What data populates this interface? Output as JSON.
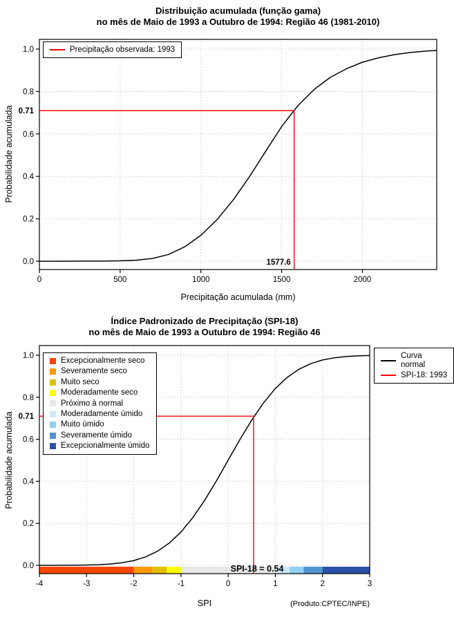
{
  "chart_data": [
    {
      "type": "line",
      "title": "Distribuição acumulada (função gama)",
      "subtitle": "no mês de Maio de 1993 a Outubro de 1994: Região 46 (1981-2010)",
      "xlabel": "Precipitação acumulada (mm)",
      "ylabel": "Probabilidade acumulada",
      "xlim": [
        0,
        2460
      ],
      "ylim": [
        0,
        1
      ],
      "xticks": [
        0,
        500,
        1000,
        1500,
        2000
      ],
      "xticklabels": [
        "0",
        "500",
        "1000",
        "1500",
        "2000"
      ],
      "yticks": [
        0,
        0.2,
        0.4,
        0.6,
        0.8,
        1
      ],
      "yticklabels": [
        "0.0",
        "0.2",
        "0.4",
        "0.6",
        "0.8",
        "1.0"
      ],
      "grid": true,
      "curve": {
        "name": "CDF gama (1981-2010)",
        "color": "#000000",
        "x": [
          0,
          100,
          200,
          300,
          400,
          500,
          600,
          700,
          800,
          900,
          1000,
          1100,
          1200,
          1300,
          1400,
          1500,
          1600,
          1700,
          1800,
          1900,
          2000,
          2100,
          2200,
          2300,
          2400,
          2460
        ],
        "y": [
          0,
          0,
          0.0002,
          0.0005,
          0.001,
          0.002,
          0.005,
          0.013,
          0.032,
          0.068,
          0.122,
          0.196,
          0.289,
          0.398,
          0.517,
          0.635,
          0.733,
          0.809,
          0.866,
          0.907,
          0.938,
          0.959,
          0.974,
          0.984,
          0.991,
          0.993
        ]
      },
      "marker": {
        "x": 1577.6,
        "y": 0.71,
        "x_label": "1577.6",
        "y_axis_label": "0.71",
        "color": "#ff0000"
      },
      "legend": {
        "items": [
          {
            "label": "Precipitação observada: 1993",
            "color": "#ff0000"
          }
        ]
      }
    },
    {
      "type": "line",
      "title": "Índice Padronizado de Precipitação (SPI-18)",
      "subtitle": "no mês de Maio de 1993 a Outubro de 1994: Região 46",
      "xlabel": "SPI",
      "ylabel": "Probabilidade acumulada",
      "xlim": [
        -4,
        3
      ],
      "ylim": [
        0,
        1
      ],
      "xticks": [
        -4,
        -3,
        -2,
        -1,
        0,
        1,
        2,
        3
      ],
      "xticklabels": [
        "-4",
        "-3",
        "-2",
        "-1",
        "0",
        "1",
        "2",
        "3"
      ],
      "yticks": [
        0,
        0.2,
        0.4,
        0.6,
        0.8,
        1
      ],
      "yticklabels": [
        "0.0",
        "0.2",
        "0.4",
        "0.6",
        "0.8",
        "1.0"
      ],
      "grid": true,
      "curve": {
        "name": "Curva normal",
        "color": "#000000",
        "x": [
          -4,
          -3.75,
          -3.5,
          -3.25,
          -3,
          -2.75,
          -2.5,
          -2.25,
          -2,
          -1.75,
          -1.5,
          -1.25,
          -1,
          -0.75,
          -0.5,
          -0.25,
          0,
          0.25,
          0.5,
          0.75,
          1,
          1.25,
          1.5,
          1.75,
          2,
          2.25,
          2.5,
          2.75,
          3
        ],
        "y": [
          0.0,
          0.0001,
          0.0002,
          0.0006,
          0.0013,
          0.003,
          0.0062,
          0.0122,
          0.0228,
          0.0401,
          0.0668,
          0.1056,
          0.1587,
          0.2266,
          0.3085,
          0.4013,
          0.5,
          0.5987,
          0.6915,
          0.7734,
          0.8413,
          0.8944,
          0.9332,
          0.9599,
          0.9772,
          0.9878,
          0.9938,
          0.997,
          0.9987
        ]
      },
      "marker": {
        "x": 0.54,
        "y": 0.71,
        "y_axis_label": "0.71",
        "color": "#ff0000"
      },
      "annotation": "SPI-18 = 0.54",
      "credit": "(Produto:CPTEC/INPE)",
      "legend_right": {
        "items": [
          {
            "line1": "Curva",
            "line2": "normal",
            "color": "#000000"
          },
          {
            "line1": "SPI-18: 1993",
            "color": "#ff0000"
          }
        ]
      },
      "categories": [
        {
          "label": "Excepcionalmente seco",
          "color": "#ff4500",
          "from": -4,
          "to": -2
        },
        {
          "label": "Severamente seco",
          "color": "#ff9900",
          "from": -2,
          "to": -1.6
        },
        {
          "label": "Muito seco",
          "color": "#e0c000",
          "from": -1.6,
          "to": -1.3
        },
        {
          "label": "Moderadamente seco",
          "color": "#ffff00",
          "from": -1.3,
          "to": -1
        },
        {
          "label": "Próximo à normal",
          "color": "#e8e8e8",
          "from": -1,
          "to": 1
        },
        {
          "label": "Moderadamente úmido",
          "color": "#cdeafa",
          "from": 1,
          "to": 1.3
        },
        {
          "label": "Muito úmido",
          "color": "#8ed0f2",
          "from": 1.3,
          "to": 1.6
        },
        {
          "label": "Severamente úmido",
          "color": "#4f94cd",
          "from": 1.6,
          "to": 2
        },
        {
          "label": "Excepcionalmente úmido",
          "color": "#2a52a8",
          "from": 2,
          "to": 3
        }
      ]
    }
  ]
}
